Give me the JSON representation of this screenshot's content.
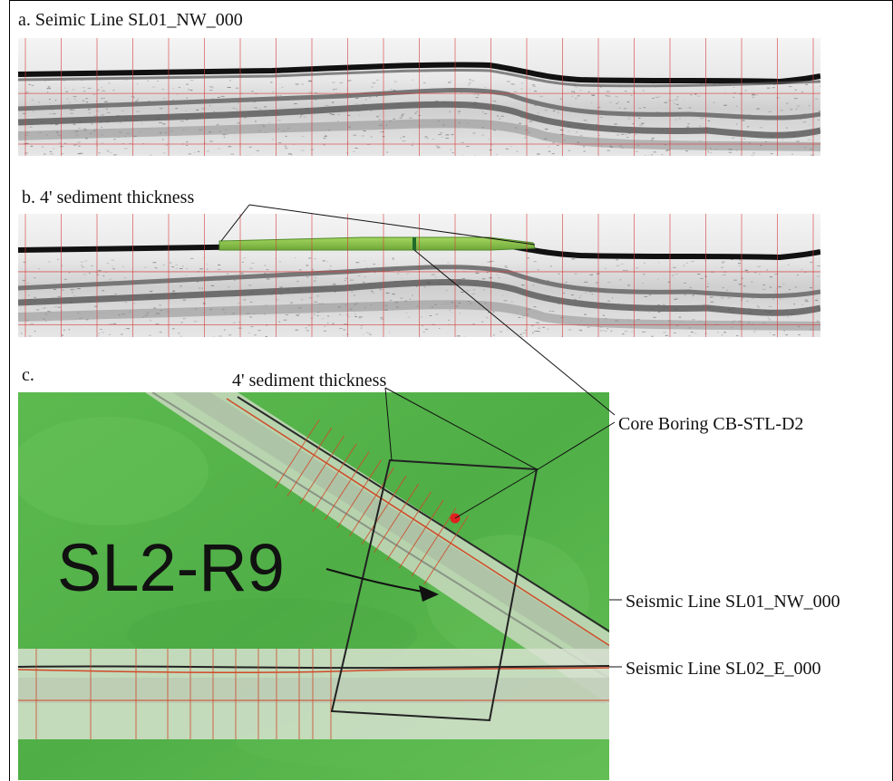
{
  "panels": {
    "a": {
      "label": "a.  Seimic Line SL01_NW_000"
    },
    "b": {
      "label": "b.  4' sediment thickness"
    },
    "c": {
      "label": "c.",
      "sediment_label": "4' sediment thickness",
      "region_label": "SL2-R9",
      "core_label": "Core Boring CB-STL-D2",
      "line1_label": "Seismic Line SL01_NW_000",
      "line2_label": "Seismic Line SL02_E_000"
    }
  },
  "colors": {
    "frame": "#000000",
    "seismic_bg": "#f2f2f2",
    "seafloor": "#1a1a1a",
    "grid": "#d83a3a",
    "sediment": "#8cc63f",
    "map_green": "#55b54a",
    "core_dot": "#e02020",
    "polygon": "#202020"
  }
}
